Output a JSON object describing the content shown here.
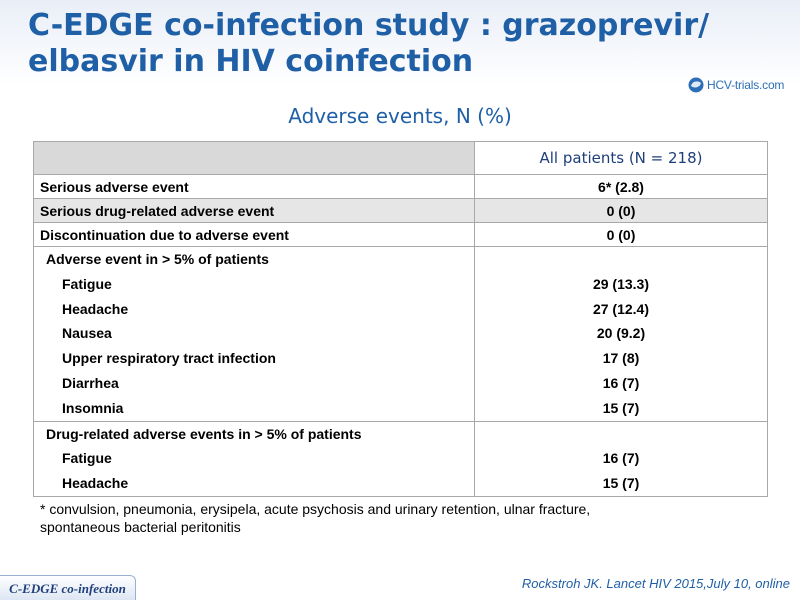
{
  "slide": {
    "title_line1": "C-EDGE co-infection study : grazoprevir/",
    "title_line2": "elbasvir in HIV coinfection",
    "logo_text": "HCV-trials.com",
    "subtitle": "Adverse events, N (%)"
  },
  "table": {
    "header": [
      "",
      "All patients (N = 218)"
    ],
    "rows": [
      {
        "label": "Serious adverse event",
        "value": "6* (2.8)"
      },
      {
        "label": "Serious drug-related adverse event",
        "value": "0 (0)"
      },
      {
        "label": "Discontinuation due to adverse event",
        "value": "0 (0)"
      }
    ],
    "group1": {
      "label": "Adverse event in > 5% of patients",
      "items": [
        {
          "label": "Fatigue",
          "value": "29 (13.3)"
        },
        {
          "label": "Headache",
          "value": "27 (12.4)"
        },
        {
          "label": "Nausea",
          "value": "20 (9.2)"
        },
        {
          "label": "Upper respiratory tract infection",
          "value": "17 (8)"
        },
        {
          "label": "Diarrhea",
          "value": "16 (7)"
        },
        {
          "label": "Insomnia",
          "value": "15 (7)"
        }
      ]
    },
    "group2": {
      "label": "Drug-related adverse events in > 5% of patients",
      "items": [
        {
          "label": "Fatigue",
          "value": "16 (7)"
        },
        {
          "label": "Headache",
          "value": "15 (7)"
        }
      ]
    }
  },
  "footnote_line1": "* convulsion, pneumonia, erysipela, acute psychosis and urinary retention, ulnar fracture,",
  "footnote_line2": "spontaneous bacterial peritonitis",
  "footer": {
    "tag": "C-EDGE co-infection",
    "citation": "Rockstroh JK. Lancet HIV 2015,July 10, online"
  },
  "colors": {
    "title": "#1f5fa6",
    "header_fill": "#d9d9d9",
    "shade_row": "#e6e6e6"
  }
}
